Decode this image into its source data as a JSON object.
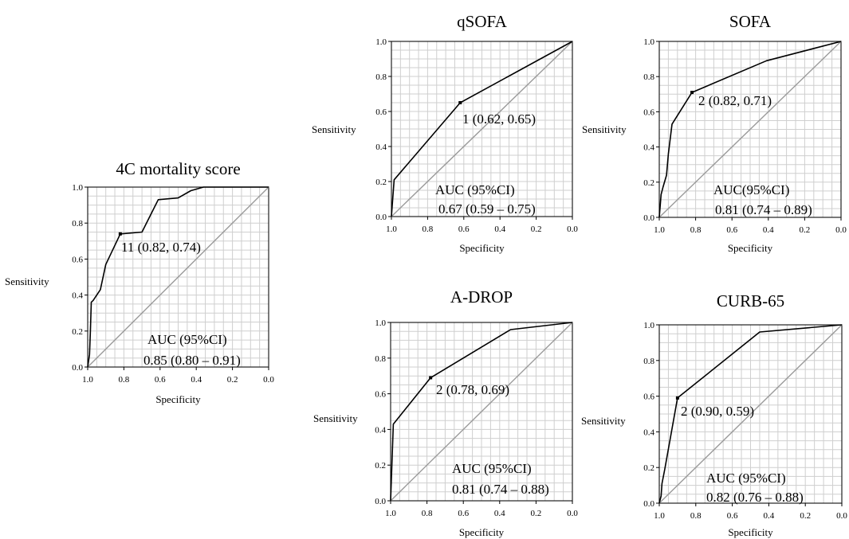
{
  "chart_data": [
    {
      "type": "line",
      "title": "4C mortality score",
      "xlabel": "Specificity",
      "ylabel": "Sensitivity",
      "xlim": [
        1.0,
        0.0
      ],
      "ylim": [
        0.0,
        1.0
      ],
      "grid": true,
      "xticks": [
        "1.0",
        "0.8",
        "0.6",
        "0.4",
        "0.2",
        "0.0"
      ],
      "yticks": [
        "0.0",
        "0.2",
        "0.4",
        "0.6",
        "0.8",
        "1.0"
      ],
      "x": [
        1.0,
        0.99,
        0.985,
        0.98,
        0.97,
        0.93,
        0.9,
        0.82,
        0.7,
        0.61,
        0.5,
        0.43,
        0.36,
        0.0
      ],
      "y": [
        0.0,
        0.07,
        0.2,
        0.36,
        0.37,
        0.43,
        0.57,
        0.74,
        0.75,
        0.93,
        0.94,
        0.98,
        1.0,
        1.0
      ],
      "cutoff": {
        "x": 0.82,
        "y": 0.74,
        "label": "11 (0.82, 0.74)"
      },
      "auc_label": "AUC (95%CI)",
      "auc_value": "0.85 (0.80 – 0.91)"
    },
    {
      "type": "line",
      "title": "qSOFA",
      "xlabel": "Specificity",
      "ylabel": "Sensitivity",
      "xlim": [
        1.0,
        0.0
      ],
      "ylim": [
        0.0,
        1.0
      ],
      "grid": true,
      "xticks": [
        "1.0",
        "0.8",
        "0.6",
        "0.4",
        "0.2",
        "0.0"
      ],
      "yticks": [
        "0.0",
        "0.2",
        "0.4",
        "0.6",
        "0.8",
        "1.0"
      ],
      "x": [
        1.0,
        0.985,
        0.62,
        0.0
      ],
      "y": [
        0.0,
        0.21,
        0.65,
        1.0
      ],
      "cutoff": {
        "x": 0.62,
        "y": 0.65,
        "label": "1 (0.62, 0.65)"
      },
      "auc_label": "AUC (95%CI)",
      "auc_value": "0.67 (0.59 – 0.75)"
    },
    {
      "type": "line",
      "title": "SOFA",
      "xlabel": "Specificity",
      "ylabel": "Sensitivity",
      "xlim": [
        1.0,
        0.0
      ],
      "ylim": [
        0.0,
        1.0
      ],
      "grid": true,
      "xticks": [
        "1.0",
        "0.8",
        "0.6",
        "0.4",
        "0.2",
        "0.0"
      ],
      "yticks": [
        "0.0",
        "0.2",
        "0.4",
        "0.6",
        "0.8",
        "1.0"
      ],
      "x": [
        1.0,
        0.99,
        0.98,
        0.96,
        0.95,
        0.93,
        0.82,
        0.41,
        0.0
      ],
      "y": [
        0.0,
        0.13,
        0.17,
        0.24,
        0.36,
        0.53,
        0.71,
        0.89,
        1.0
      ],
      "cutoff": {
        "x": 0.82,
        "y": 0.71,
        "label": "2 (0.82, 0.71)"
      },
      "auc_label": "AUC(95%CI)",
      "auc_value": "0.81 (0.74 – 0.89)"
    },
    {
      "type": "line",
      "title": "A-DROP",
      "xlabel": "Specificity",
      "ylabel": "Sensitivity",
      "xlim": [
        1.0,
        0.0
      ],
      "ylim": [
        0.0,
        1.0
      ],
      "grid": true,
      "xticks": [
        "1.0",
        "0.8",
        "0.6",
        "0.4",
        "0.2",
        "0.0"
      ],
      "yticks": [
        "0.0",
        "0.2",
        "0.4",
        "0.6",
        "0.8",
        "1.0"
      ],
      "x": [
        1.0,
        0.985,
        0.78,
        0.34,
        0.0
      ],
      "y": [
        0.0,
        0.43,
        0.69,
        0.96,
        1.0
      ],
      "cutoff": {
        "x": 0.78,
        "y": 0.69,
        "label": "2 (0.78, 0.69)"
      },
      "auc_label": "AUC (95%CI)",
      "auc_value": "0.81 (0.74 – 0.88)"
    },
    {
      "type": "line",
      "title": "CURB-65",
      "xlabel": "Specificity",
      "ylabel": "Sensitivity",
      "xlim": [
        1.0,
        0.0
      ],
      "ylim": [
        0.0,
        1.0
      ],
      "grid": true,
      "xticks": [
        "1.0",
        "0.8",
        "0.6",
        "0.4",
        "0.2",
        "0.0"
      ],
      "yticks": [
        "0.0",
        "0.2",
        "0.4",
        "0.6",
        "0.8",
        "1.0"
      ],
      "x": [
        1.0,
        0.99,
        0.985,
        0.97,
        0.9,
        0.45,
        0.0
      ],
      "y": [
        0.0,
        0.04,
        0.11,
        0.19,
        0.59,
        0.96,
        1.0
      ],
      "cutoff": {
        "x": 0.9,
        "y": 0.59,
        "label": "2 (0.90, 0.59)"
      },
      "auc_label": "AUC (95%CI)",
      "auc_value": "0.82 (0.76 – 0.88)"
    }
  ]
}
